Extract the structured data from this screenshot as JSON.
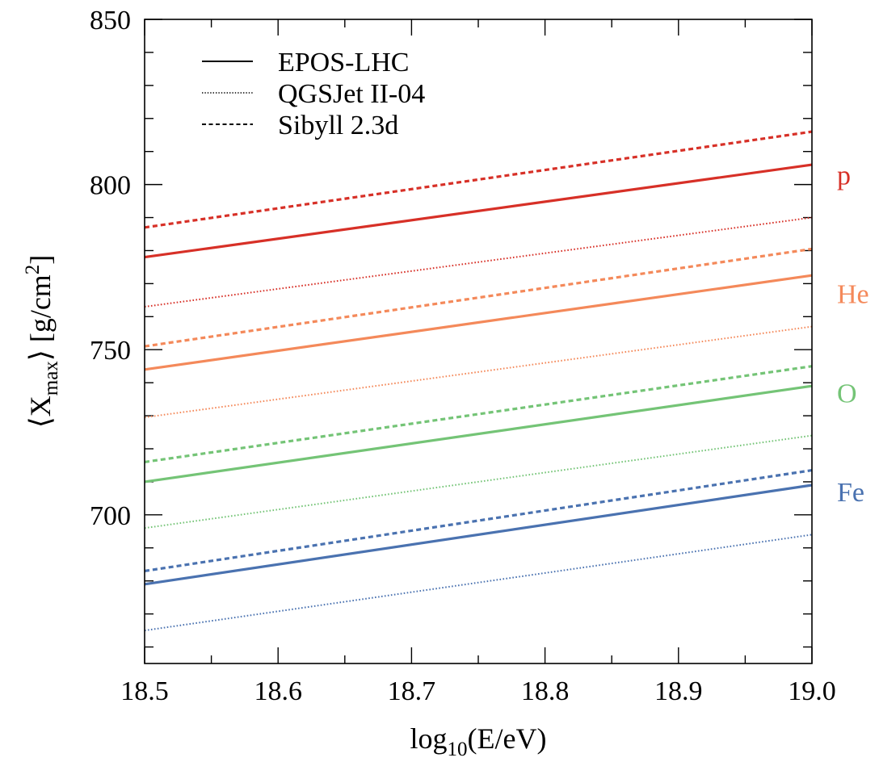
{
  "chart_data": {
    "type": "line",
    "title": "",
    "xlabel": {
      "base": "log",
      "sub": "10",
      "rest": "(E/eV)"
    },
    "ylabel": {
      "open": "⟨X",
      "sub": "max",
      "mid": "⟩ [g/cm",
      "sup": "2",
      "close": "]"
    },
    "xlim": [
      18.5,
      19.0
    ],
    "ylim": [
      655,
      850
    ],
    "x_ticks": [
      "18.5",
      "18.6",
      "18.7",
      "18.8",
      "18.9",
      "19.0"
    ],
    "y_ticks": [
      "700",
      "750",
      "800",
      "850"
    ],
    "grid": false,
    "legend": {
      "placement": "top-left",
      "entries": [
        {
          "label": "EPOS-LHC",
          "style": "solid"
        },
        {
          "label": "QGSJet II-04",
          "style": "dotted"
        },
        {
          "label": "Sibyll 2.3d",
          "style": "dashed"
        }
      ]
    },
    "species": [
      {
        "label": "p",
        "color": "#d73027",
        "label_y": 803
      },
      {
        "label": "He",
        "color": "#f4895a",
        "label_y": 767
      },
      {
        "label": "O",
        "color": "#74c476",
        "label_y": 737
      },
      {
        "label": "Fe",
        "color": "#4a72b0",
        "label_y": 707
      }
    ],
    "series": [
      {
        "model": "EPOS-LHC",
        "species": "p",
        "style": "solid",
        "x": [
          18.5,
          19.0
        ],
        "y": [
          778,
          806
        ]
      },
      {
        "model": "QGSJet II-04",
        "species": "p",
        "style": "dotted",
        "x": [
          18.5,
          19.0
        ],
        "y": [
          763,
          790
        ]
      },
      {
        "model": "Sibyll 2.3d",
        "species": "p",
        "style": "dashed",
        "x": [
          18.5,
          19.0
        ],
        "y": [
          787,
          816
        ]
      },
      {
        "model": "EPOS-LHC",
        "species": "He",
        "style": "solid",
        "x": [
          18.5,
          19.0
        ],
        "y": [
          744,
          772.5
        ]
      },
      {
        "model": "QGSJet II-04",
        "species": "He",
        "style": "dotted",
        "x": [
          18.5,
          19.0
        ],
        "y": [
          729.5,
          757
        ]
      },
      {
        "model": "Sibyll 2.3d",
        "species": "He",
        "style": "dashed",
        "x": [
          18.5,
          19.0
        ],
        "y": [
          751,
          780.5
        ]
      },
      {
        "model": "EPOS-LHC",
        "species": "O",
        "style": "solid",
        "x": [
          18.5,
          19.0
        ],
        "y": [
          710,
          739
        ]
      },
      {
        "model": "QGSJet II-04",
        "species": "O",
        "style": "dotted",
        "x": [
          18.5,
          19.0
        ],
        "y": [
          696,
          724
        ]
      },
      {
        "model": "Sibyll 2.3d",
        "species": "O",
        "style": "dashed",
        "x": [
          18.5,
          19.0
        ],
        "y": [
          716,
          745
        ]
      },
      {
        "model": "EPOS-LHC",
        "species": "Fe",
        "style": "solid",
        "x": [
          18.5,
          19.0
        ],
        "y": [
          679,
          709
        ]
      },
      {
        "model": "QGSJet II-04",
        "species": "Fe",
        "style": "dotted",
        "x": [
          18.5,
          19.0
        ],
        "y": [
          665,
          694
        ]
      },
      {
        "model": "Sibyll 2.3d",
        "species": "Fe",
        "style": "dashed",
        "x": [
          18.5,
          19.0
        ],
        "y": [
          683,
          713.5
        ]
      }
    ]
  }
}
